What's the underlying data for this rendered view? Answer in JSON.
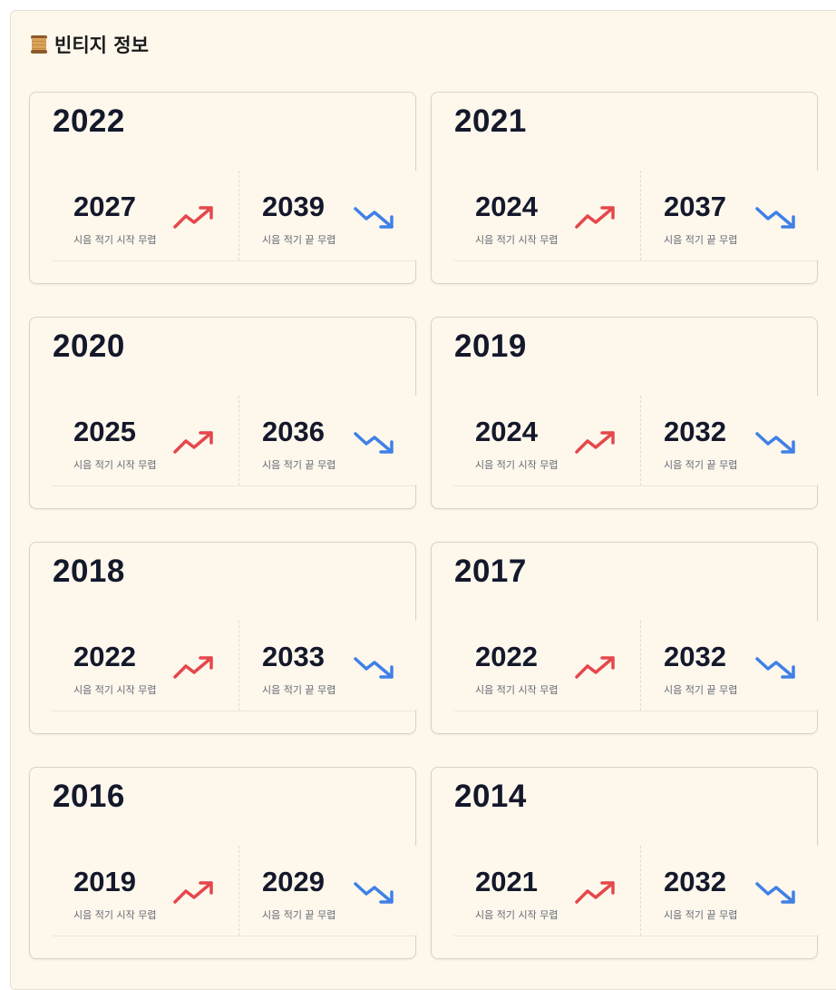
{
  "section": {
    "title": "빈티지 정보",
    "icon": "scroll-icon"
  },
  "labels": {
    "start": "시음 적기 시작 무렵",
    "end": "시음 적기 끝 무렵"
  },
  "colors": {
    "up": "#e5474b",
    "down": "#3f80e8"
  },
  "cards": [
    {
      "vintage": "2022",
      "start": "2027",
      "end": "2039"
    },
    {
      "vintage": "2021",
      "start": "2024",
      "end": "2037"
    },
    {
      "vintage": "2020",
      "start": "2025",
      "end": "2036"
    },
    {
      "vintage": "2019",
      "start": "2024",
      "end": "2032"
    },
    {
      "vintage": "2018",
      "start": "2022",
      "end": "2033"
    },
    {
      "vintage": "2017",
      "start": "2022",
      "end": "2032"
    },
    {
      "vintage": "2016",
      "start": "2019",
      "end": "2029"
    },
    {
      "vintage": "2014",
      "start": "2021",
      "end": "2032"
    }
  ]
}
